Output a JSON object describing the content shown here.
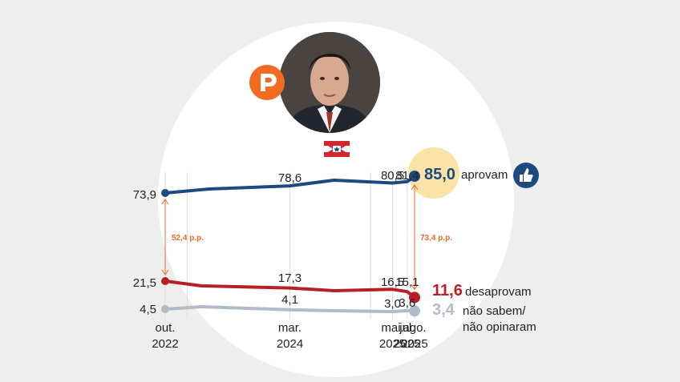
{
  "chart_data": {
    "type": "line",
    "x": [
      "out. 2022",
      "mar. 2024",
      "mai. 2025",
      "jul. 2025",
      "ago. 2025"
    ],
    "x_label_lines": [
      [
        "out.",
        "2022"
      ],
      [
        "mar.",
        "2024"
      ],
      [
        "mai.",
        "2025"
      ],
      [
        "jul.",
        "2025"
      ],
      [
        "ago.",
        "2025"
      ]
    ],
    "ylim": [
      0,
      100
    ],
    "grid": "vertical",
    "series": [
      {
        "name": "aprovam",
        "color": "#1c4a80",
        "values": [
          73.9,
          78.6,
          80.5,
          81.4,
          85.0
        ],
        "labels": [
          "73,9",
          "78,6",
          "80,5",
          "81,4",
          "85,0"
        ]
      },
      {
        "name": "desaprovam",
        "color": "#b81f24",
        "values": [
          21.5,
          17.3,
          16.5,
          15.1,
          11.6
        ],
        "labels": [
          "21,5",
          "17,3",
          "16,5",
          "15,1",
          "11,6"
        ]
      },
      {
        "name": "não sabem/ não opinaram",
        "name_lines": [
          "não sabem/",
          "não opinaram"
        ],
        "color": "#b0bcc7",
        "values": [
          4.5,
          4.1,
          3.0,
          3.6,
          3.4
        ],
        "labels": [
          "4,5",
          "4,1",
          "3,0",
          "3,6",
          "3,4"
        ]
      }
    ],
    "gaps": [
      {
        "label": "52,4 p.p.",
        "at": "out. 2022",
        "color": "#f36a21"
      },
      {
        "label": "73,4 p.p.",
        "at": "ago. 2025",
        "color": "#f36a21"
      }
    ]
  },
  "colors": {
    "background": "#eeeeee",
    "circle": "#ffffff",
    "highlight": "#f9e3a6",
    "accent": "#f36a21"
  },
  "icons": {
    "thumb": "thumbs-up-icon",
    "brand": "brand-logo-icon",
    "flag": "para-flag-icon"
  }
}
